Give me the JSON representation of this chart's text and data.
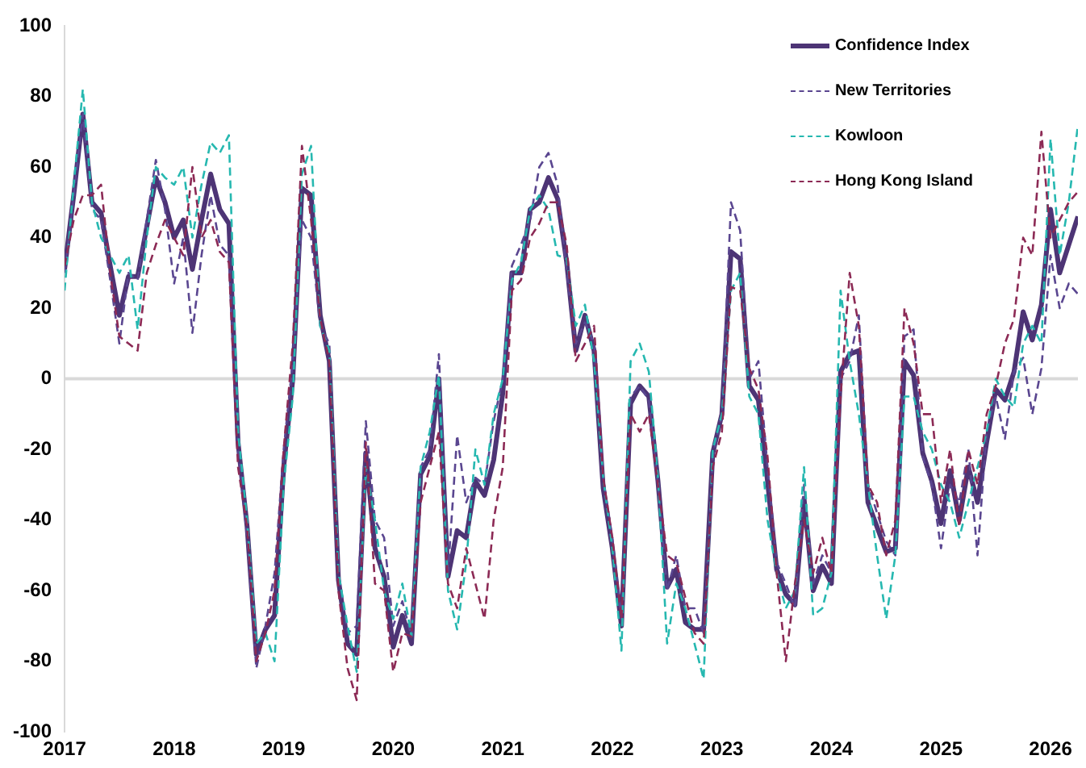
{
  "chart_data": {
    "type": "line",
    "x": [
      "2017-01",
      "2017-02",
      "2017-03",
      "2017-04",
      "2017-05",
      "2017-06",
      "2017-07",
      "2017-08",
      "2017-09",
      "2017-10",
      "2017-11",
      "2017-12",
      "2018-01",
      "2018-02",
      "2018-03",
      "2018-04",
      "2018-05",
      "2018-06",
      "2018-07",
      "2018-08",
      "2018-09",
      "2018-10",
      "2018-11",
      "2018-12",
      "2019-01",
      "2019-02",
      "2019-03",
      "2019-04",
      "2019-05",
      "2019-06",
      "2019-07",
      "2019-08",
      "2019-09",
      "2019-10",
      "2019-11",
      "2019-12",
      "2020-01",
      "2020-02",
      "2020-03",
      "2020-04",
      "2020-05",
      "2020-06",
      "2020-07",
      "2020-08",
      "2020-09",
      "2020-10",
      "2020-11",
      "2020-12",
      "2021-01",
      "2021-02",
      "2021-03",
      "2021-04",
      "2021-05",
      "2021-06",
      "2021-07",
      "2021-08",
      "2021-09",
      "2021-10",
      "2021-11",
      "2021-12",
      "2022-01",
      "2022-02",
      "2022-03",
      "2022-04",
      "2022-05",
      "2022-06",
      "2022-07",
      "2022-08",
      "2022-09",
      "2022-10",
      "2022-11",
      "2022-12",
      "2023-01",
      "2023-02",
      "2023-03",
      "2023-04",
      "2023-05",
      "2023-06",
      "2023-07",
      "2023-08",
      "2023-09",
      "2023-10",
      "2023-11",
      "2023-12",
      "2024-01",
      "2024-02",
      "2024-03",
      "2024-04",
      "2024-05",
      "2024-06",
      "2024-07",
      "2024-08",
      "2024-09",
      "2024-10",
      "2024-11",
      "2024-12",
      "2025-01",
      "2025-02",
      "2025-03",
      "2025-04",
      "2025-05",
      "2025-06",
      "2025-07",
      "2025-08",
      "2025-09",
      "2025-10",
      "2025-11",
      "2025-12",
      "2026-01",
      "2026-02",
      "2026-03",
      "2026-04"
    ],
    "series": [
      {
        "name": "Confidence Index",
        "color": "#4d3475",
        "line_style": "solid",
        "values": [
          31,
          52,
          75,
          50,
          47,
          32,
          18,
          29,
          29,
          43,
          57,
          50,
          40,
          45,
          31,
          45,
          58,
          48,
          44,
          -18,
          -42,
          -78,
          -71,
          -67,
          -25,
          0,
          54,
          52,
          18,
          5,
          -57,
          -75,
          -78,
          -21,
          -48,
          -56,
          -76,
          -67,
          -75,
          -27,
          -22,
          0,
          -56,
          -43,
          -45,
          -29,
          -33,
          -23,
          -4,
          30,
          30,
          48,
          50,
          57,
          51,
          33,
          8,
          18,
          8,
          -31,
          -48,
          -70,
          -7,
          -2,
          -5,
          -29,
          -59,
          -54,
          -69,
          -71,
          -71,
          -21,
          -10,
          36,
          34,
          -2,
          -6,
          -29,
          -54,
          -61,
          -64,
          -34,
          -60,
          -53,
          -58,
          2,
          7,
          8,
          -35,
          -42,
          -49,
          -48,
          5,
          1,
          -21,
          -29,
          -41,
          -26,
          -40,
          -25,
          -35,
          -18,
          -3,
          -6,
          2,
          19,
          11,
          21,
          48,
          30,
          38,
          46
        ]
      },
      {
        "name": "New Territories",
        "color": "#5a4690",
        "line_style": "dashed",
        "values": [
          30,
          52,
          75,
          48,
          45,
          28,
          10,
          30,
          28,
          45,
          62,
          48,
          27,
          40,
          13,
          35,
          52,
          38,
          35,
          -20,
          -45,
          -82,
          -70,
          -55,
          -20,
          5,
          45,
          40,
          15,
          10,
          -55,
          -72,
          -70,
          -12,
          -40,
          -45,
          -70,
          -63,
          -73,
          -25,
          -20,
          7,
          -55,
          -16,
          -35,
          -28,
          -30,
          -12,
          0,
          32,
          38,
          45,
          60,
          64,
          55,
          30,
          10,
          16,
          10,
          -28,
          -45,
          -68,
          -5,
          -2,
          -6,
          -30,
          -60,
          -50,
          -65,
          -65,
          -72,
          -22,
          -10,
          50,
          42,
          0,
          5,
          -25,
          -52,
          -58,
          -65,
          -30,
          -58,
          -50,
          -55,
          0,
          5,
          18,
          -30,
          -38,
          -46,
          -50,
          12,
          14,
          -22,
          -30,
          -48,
          -30,
          -35,
          -20,
          -50,
          -15,
          -5,
          -17,
          2,
          6,
          -10,
          3,
          35,
          20,
          27,
          24
        ]
      },
      {
        "name": "Kowloon",
        "color": "#26b8b0",
        "line_style": "dashed",
        "values": [
          25,
          55,
          82,
          50,
          40,
          35,
          30,
          35,
          14,
          40,
          60,
          57,
          55,
          60,
          40,
          55,
          67,
          64,
          69,
          -15,
          -40,
          -75,
          -72,
          -80,
          -30,
          -5,
          58,
          66,
          15,
          8,
          -55,
          -70,
          -83,
          -25,
          -40,
          -60,
          -68,
          -58,
          -73,
          -25,
          -15,
          1,
          -60,
          -71,
          -52,
          -20,
          -30,
          -10,
          0,
          28,
          33,
          48,
          52,
          48,
          35,
          34,
          15,
          21,
          5,
          -28,
          -48,
          -77,
          5,
          10,
          2,
          -28,
          -75,
          -58,
          -65,
          -75,
          -85,
          -20,
          -10,
          25,
          30,
          -5,
          -10,
          -40,
          -55,
          -65,
          -60,
          -25,
          -67,
          -65,
          -55,
          25,
          5,
          -10,
          -30,
          -50,
          -68,
          -50,
          -5,
          -5,
          -15,
          -20,
          -30,
          -35,
          -45,
          -35,
          -25,
          -15,
          0,
          -5,
          -8,
          10,
          15,
          10,
          68,
          35,
          50,
          72
        ]
      },
      {
        "name": "Hong Kong Island",
        "color": "#8c2a55",
        "line_style": "dashed",
        "values": [
          32,
          45,
          52,
          52,
          55,
          30,
          12,
          10,
          8,
          30,
          38,
          45,
          40,
          35,
          60,
          40,
          45,
          36,
          33,
          -25,
          -42,
          -80,
          -72,
          -60,
          -20,
          10,
          66,
          45,
          17,
          5,
          -60,
          -82,
          -91,
          -18,
          -58,
          -60,
          -83,
          -72,
          -73,
          -35,
          -25,
          -15,
          -58,
          -65,
          -48,
          -58,
          -68,
          -40,
          -25,
          25,
          28,
          40,
          44,
          50,
          50,
          38,
          5,
          10,
          15,
          -28,
          -45,
          -68,
          -10,
          -15,
          -10,
          -30,
          -50,
          -52,
          -62,
          -72,
          -75,
          -25,
          -15,
          26,
          25,
          3,
          -3,
          -22,
          -55,
          -80,
          -58,
          -40,
          -55,
          -45,
          -55,
          -5,
          30,
          15,
          -30,
          -35,
          -50,
          -40,
          20,
          10,
          -10,
          -10,
          -35,
          -20,
          -42,
          -20,
          -30,
          -10,
          -2,
          10,
          17,
          40,
          35,
          70,
          40,
          45,
          50,
          53
        ]
      }
    ],
    "xlim": [
      "2017-01",
      "2026-04"
    ],
    "xticks": [
      "2017",
      "2018",
      "2019",
      "2020",
      "2021",
      "2022",
      "2023",
      "2024",
      "2025",
      "2026"
    ],
    "ylim": [
      -100,
      100
    ],
    "yticks": [
      -100,
      -80,
      -60,
      -40,
      -20,
      0,
      20,
      40,
      60,
      80,
      100
    ],
    "ref_lines": [
      {
        "axis": "y",
        "value": 0,
        "color": "#d9d9d9"
      }
    ],
    "grid": false,
    "legend": "top right",
    "marker": "none"
  }
}
